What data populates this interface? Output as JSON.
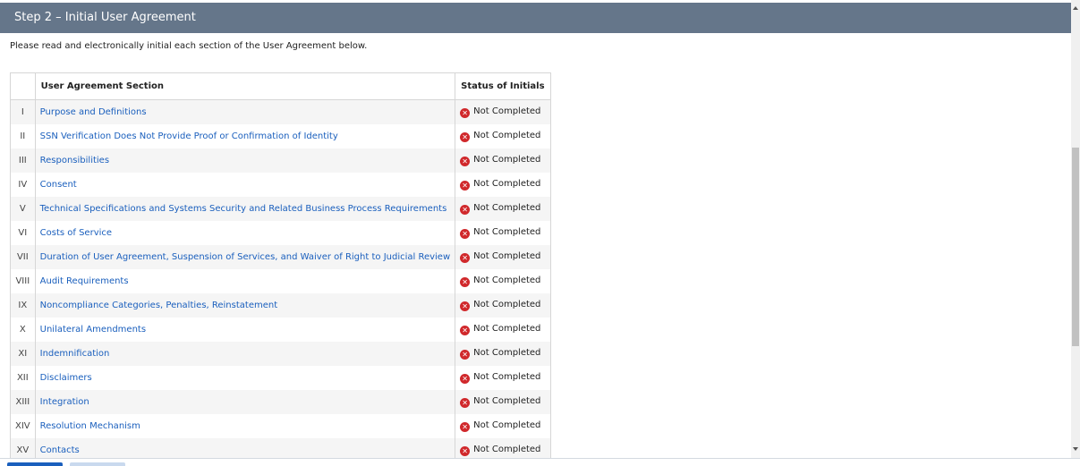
{
  "header": {
    "title": "Step 2 – Initial User Agreement"
  },
  "intro": "Please read and electronically initial each section of the User Agreement below.",
  "table": {
    "columns": [
      "",
      "User Agreement Section",
      "Status of Initials"
    ],
    "rows": [
      {
        "num": "I",
        "section": "Purpose and Definitions",
        "status": "Not Completed"
      },
      {
        "num": "II",
        "section": "SSN Verification Does Not Provide Proof or Confirmation of Identity",
        "status": "Not Completed"
      },
      {
        "num": "III",
        "section": "Responsibilities",
        "status": "Not Completed"
      },
      {
        "num": "IV",
        "section": "Consent",
        "status": "Not Completed"
      },
      {
        "num": "V",
        "section": "Technical Specifications and Systems Security and Related Business Process Requirements",
        "status": "Not Completed"
      },
      {
        "num": "VI",
        "section": "Costs of Service",
        "status": "Not Completed"
      },
      {
        "num": "VII",
        "section": "Duration of User Agreement, Suspension of Services, and Waiver of Right to Judicial Review",
        "status": "Not Completed"
      },
      {
        "num": "VIII",
        "section": "Audit Requirements",
        "status": "Not Completed"
      },
      {
        "num": "IX",
        "section": "Noncompliance Categories, Penalties, Reinstatement",
        "status": "Not Completed"
      },
      {
        "num": "X",
        "section": "Unilateral Amendments",
        "status": "Not Completed"
      },
      {
        "num": "XI",
        "section": "Indemnification",
        "status": "Not Completed"
      },
      {
        "num": "XII",
        "section": "Disclaimers",
        "status": "Not Completed"
      },
      {
        "num": "XIII",
        "section": "Integration",
        "status": "Not Completed"
      },
      {
        "num": "XIV",
        "section": "Resolution Mechanism",
        "status": "Not Completed"
      },
      {
        "num": "XV",
        "section": "Contacts",
        "status": "Not Completed"
      }
    ]
  },
  "status_icon": "error-circle-x-icon",
  "colors": {
    "header_bg": "#65768a",
    "link": "#1a5fbd",
    "error": "#d0282b"
  }
}
